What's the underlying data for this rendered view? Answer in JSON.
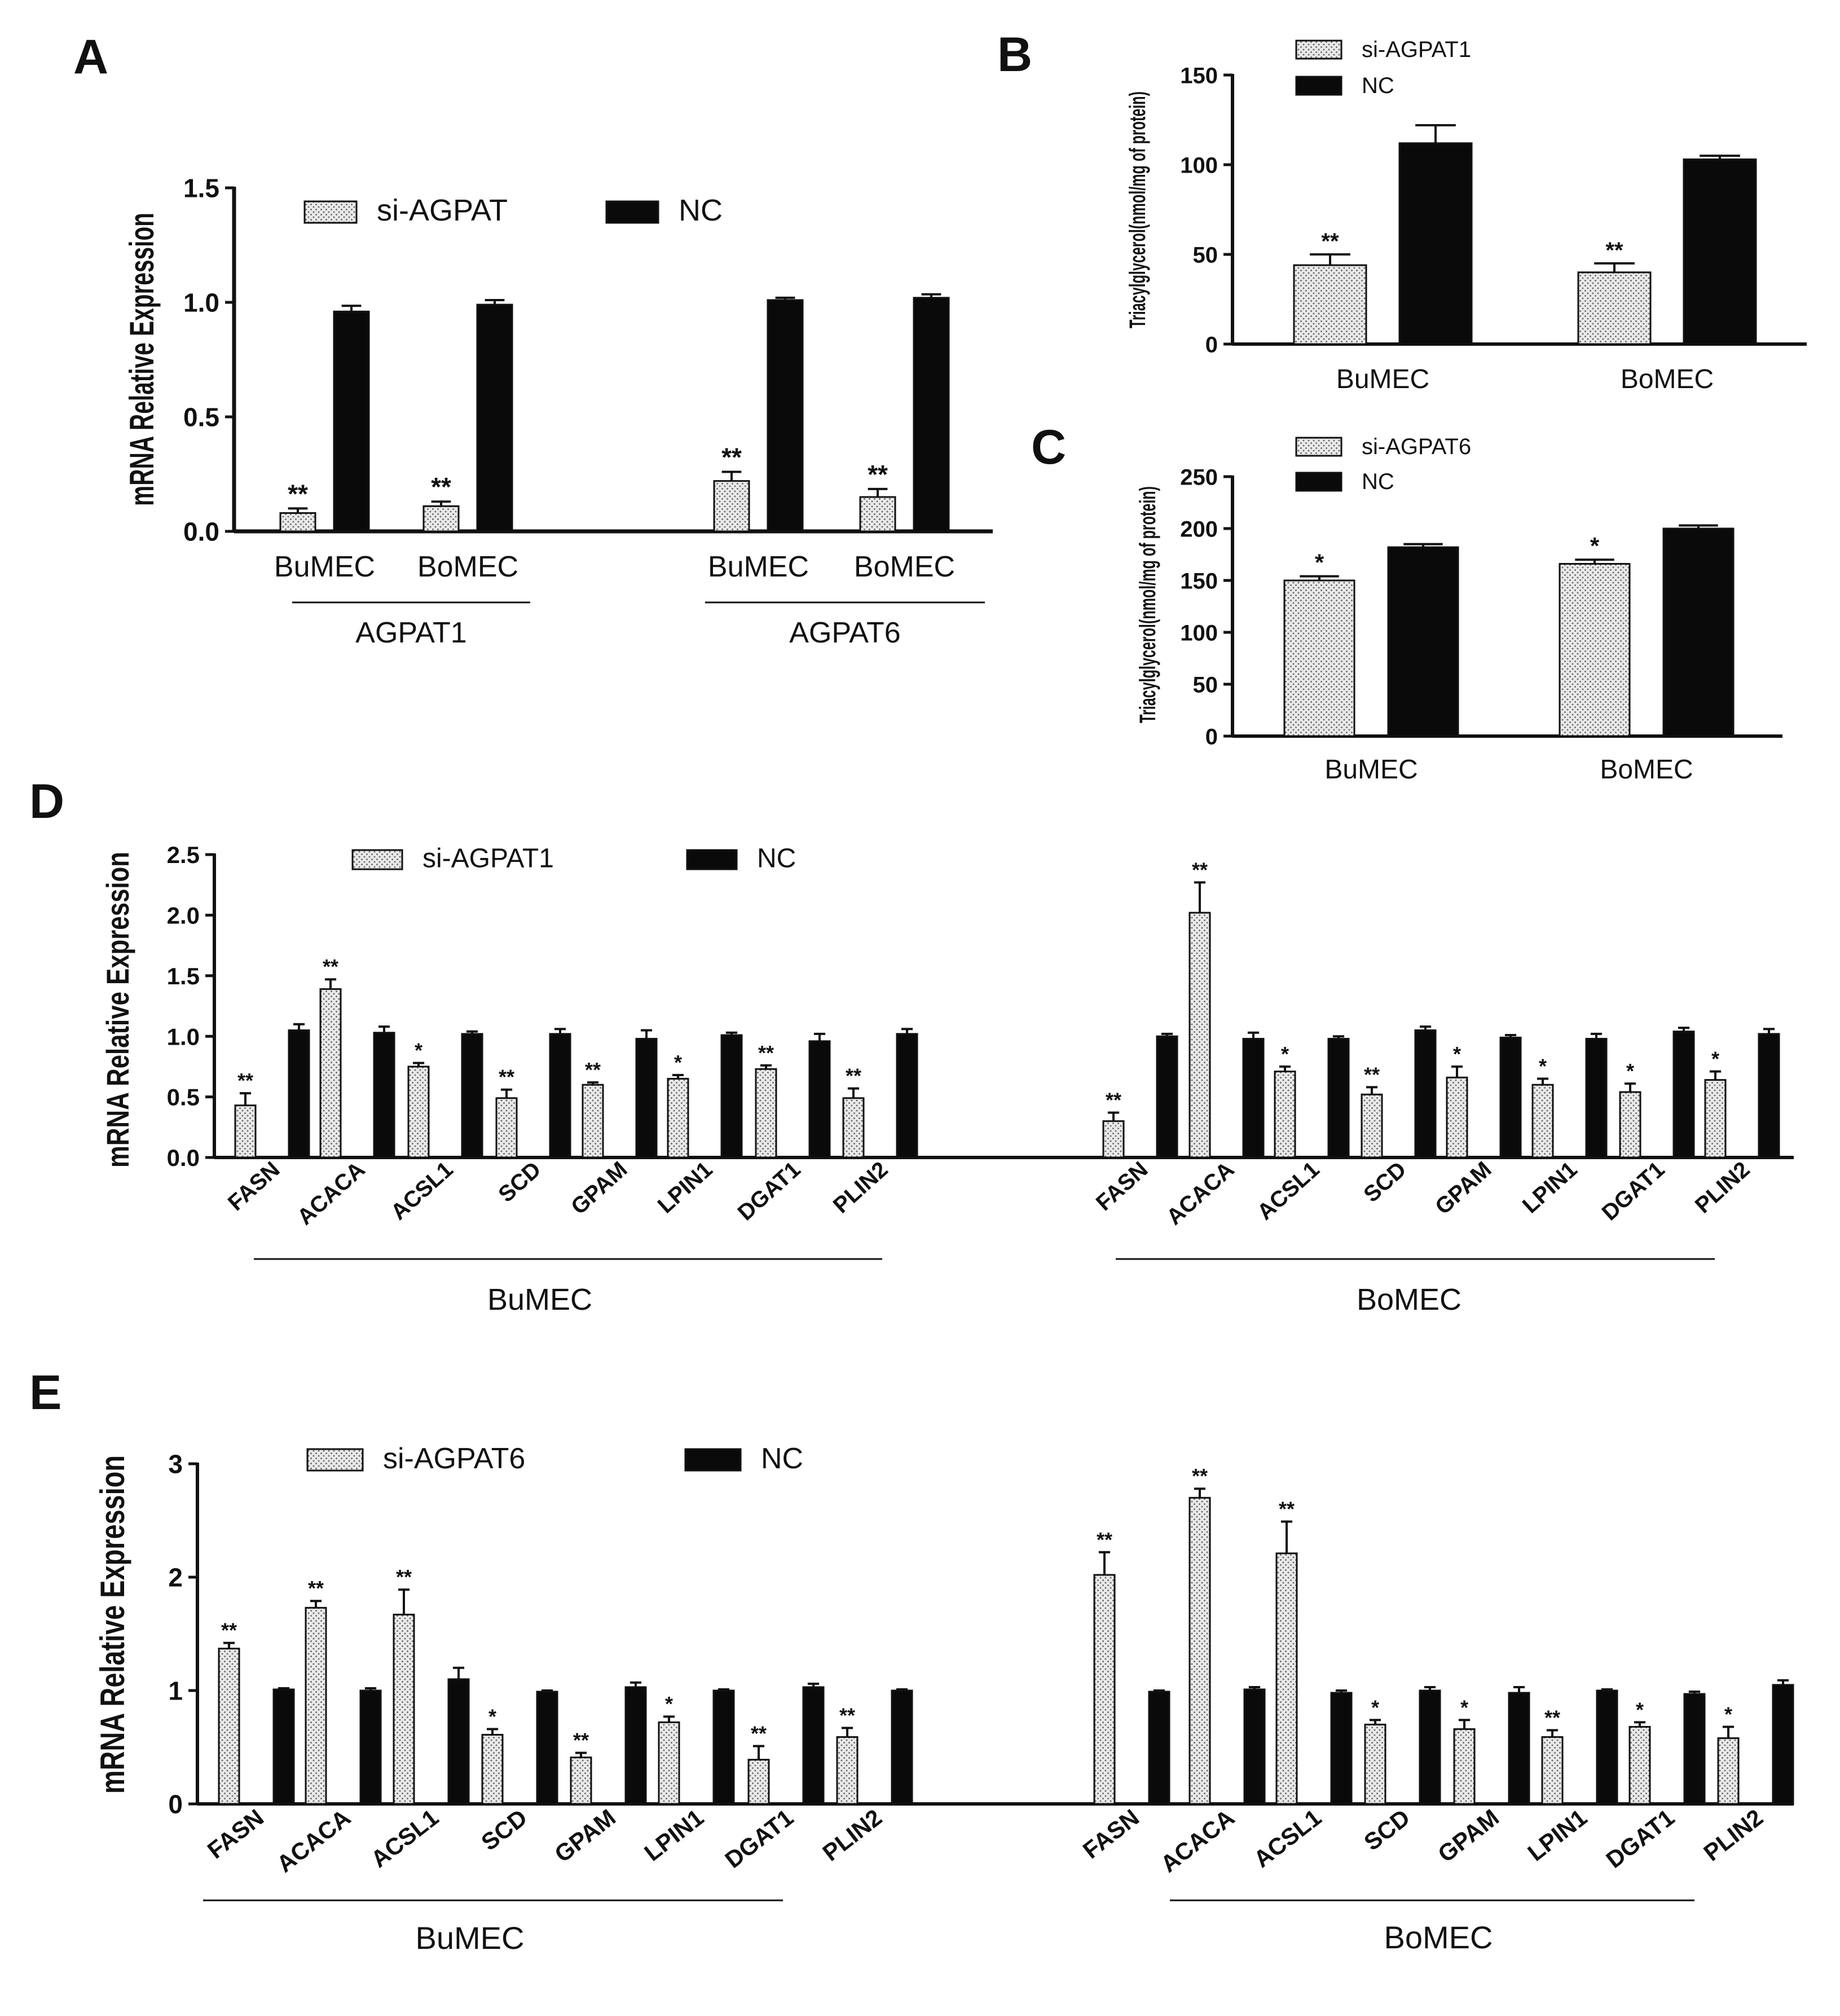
{
  "colors": {
    "nc_bar": "#0a0a0a",
    "si_bar_fill": "#e9e9e9",
    "si_bar_dot": "#6e6e6e",
    "axis": "#111111"
  },
  "chart_data": [
    {
      "panel": "A",
      "type": "bar",
      "ylabel": "mRNA Relative Expression",
      "ylim": [
        0,
        1.5
      ],
      "yticks": [
        0.0,
        0.5,
        1.0,
        1.5
      ],
      "ytick_labels": [
        "0.0",
        "0.5",
        "1.0",
        "1.5"
      ],
      "legend": [
        {
          "name": "si-AGPAT",
          "style": "dotted"
        },
        {
          "name": "NC",
          "style": "solid"
        }
      ],
      "categories": [
        "BuMEC",
        "BoMEC",
        "BuMEC",
        "BoMEC"
      ],
      "groups": [
        "AGPAT1",
        "AGPAT6"
      ],
      "series": [
        {
          "name": "si-AGPAT",
          "values": [
            0.08,
            0.11,
            0.22,
            0.15
          ],
          "errors": [
            0.02,
            0.02,
            0.04,
            0.035
          ],
          "sig": [
            "**",
            "**",
            "**",
            "**"
          ]
        },
        {
          "name": "NC",
          "values": [
            0.96,
            0.99,
            1.01,
            1.02
          ],
          "errors": [
            0.025,
            0.02,
            0.01,
            0.015
          ],
          "sig": [
            "",
            "",
            "",
            ""
          ]
        }
      ]
    },
    {
      "panel": "B",
      "type": "bar",
      "ylabel": "Triacylglycerol(nmol/mg of protein)",
      "ylim": [
        0,
        150
      ],
      "yticks": [
        0,
        50,
        100,
        150
      ],
      "ytick_labels": [
        "0",
        "50",
        "100",
        "150"
      ],
      "legend": [
        {
          "name": "si-AGPAT1",
          "style": "dotted"
        },
        {
          "name": "NC",
          "style": "solid"
        }
      ],
      "categories": [
        "BuMEC",
        "BoMEC"
      ],
      "series": [
        {
          "name": "si-AGPAT1",
          "values": [
            44,
            40
          ],
          "errors": [
            6,
            5
          ],
          "sig": [
            "**",
            "**"
          ]
        },
        {
          "name": "NC",
          "values": [
            112,
            103
          ],
          "errors": [
            10,
            2
          ],
          "sig": [
            "",
            ""
          ]
        }
      ]
    },
    {
      "panel": "C",
      "type": "bar",
      "ylabel": "Triacylglycerol(nmol/mg of protein)",
      "ylim": [
        0,
        250
      ],
      "yticks": [
        0,
        50,
        100,
        150,
        200,
        250
      ],
      "ytick_labels": [
        "0",
        "50",
        "100",
        "150",
        "200",
        "250"
      ],
      "legend": [
        {
          "name": "si-AGPAT6",
          "style": "dotted"
        },
        {
          "name": "NC",
          "style": "solid"
        }
      ],
      "categories": [
        "BuMEC",
        "BoMEC"
      ],
      "series": [
        {
          "name": "si-AGPAT6",
          "values": [
            150,
            166
          ],
          "errors": [
            4,
            4
          ],
          "sig": [
            "*",
            "*"
          ]
        },
        {
          "name": "NC",
          "values": [
            182,
            200
          ],
          "errors": [
            3,
            3
          ],
          "sig": [
            "",
            ""
          ]
        }
      ]
    },
    {
      "panel": "D",
      "type": "bar",
      "ylabel": "mRNA Relative Expression",
      "ylim": [
        0,
        2.5
      ],
      "yticks": [
        0.0,
        0.5,
        1.0,
        1.5,
        2.0,
        2.5
      ],
      "ytick_labels": [
        "0.0",
        "0.5",
        "1.0",
        "1.5",
        "2.0",
        "2.5"
      ],
      "legend": [
        {
          "name": "si-AGPAT1",
          "style": "dotted"
        },
        {
          "name": "NC",
          "style": "solid"
        }
      ],
      "categories": [
        "FASN",
        "ACACA",
        "ACSL1",
        "SCD",
        "GPAM",
        "LPIN1",
        "DGAT1",
        "PLIN2",
        "FASN",
        "ACACA",
        "ACSL1",
        "SCD",
        "GPAM",
        "LPIN1",
        "DGAT1",
        "PLIN2"
      ],
      "groups": [
        "BuMEC",
        "BoMEC"
      ],
      "series": [
        {
          "name": "si-AGPAT1",
          "values": [
            0.43,
            1.39,
            0.75,
            0.49,
            0.6,
            0.65,
            0.73,
            0.49,
            0.3,
            2.02,
            0.71,
            0.52,
            0.66,
            0.6,
            0.54,
            0.64
          ],
          "errors": [
            0.1,
            0.08,
            0.03,
            0.07,
            0.02,
            0.03,
            0.03,
            0.08,
            0.07,
            0.25,
            0.04,
            0.06,
            0.09,
            0.05,
            0.07,
            0.07
          ],
          "sig": [
            "**",
            "**",
            "*",
            "**",
            "**",
            "*",
            "**",
            "**",
            "**",
            "**",
            "*",
            "**",
            "*",
            "*",
            "*",
            "*"
          ]
        },
        {
          "name": "NC",
          "values": [
            1.05,
            1.03,
            1.02,
            1.02,
            0.98,
            1.01,
            0.96,
            1.02,
            1.0,
            0.98,
            0.98,
            1.05,
            0.99,
            0.98,
            1.04,
            1.02
          ],
          "errors": [
            0.05,
            0.05,
            0.02,
            0.04,
            0.07,
            0.02,
            0.06,
            0.04,
            0.02,
            0.05,
            0.02,
            0.03,
            0.02,
            0.04,
            0.03,
            0.04
          ],
          "sig": [
            "",
            "",
            "",
            "",
            "",
            "",
            "",
            "",
            "",
            "",
            "",
            "",
            "",
            "",
            "",
            ""
          ]
        }
      ]
    },
    {
      "panel": "E",
      "type": "bar",
      "ylabel": "mRNA Relative Expression",
      "ylim": [
        0,
        3
      ],
      "yticks": [
        0,
        1,
        2,
        3
      ],
      "ytick_labels": [
        "0",
        "1",
        "2",
        "3"
      ],
      "legend": [
        {
          "name": "si-AGPAT6",
          "style": "dotted"
        },
        {
          "name": "NC",
          "style": "solid"
        }
      ],
      "categories": [
        "FASN",
        "ACACA",
        "ACSL1",
        "SCD",
        "GPAM",
        "LPIN1",
        "DGAT1",
        "PLIN2",
        "FASN",
        "ACACA",
        "ACSL1",
        "SCD",
        "GPAM",
        "LPIN1",
        "DGAT1",
        "PLIN2"
      ],
      "groups": [
        "BuMEC",
        "BoMEC"
      ],
      "series": [
        {
          "name": "si-AGPAT6",
          "values": [
            1.37,
            1.73,
            1.67,
            0.61,
            0.41,
            0.72,
            0.39,
            0.59,
            2.02,
            2.7,
            2.21,
            0.7,
            0.66,
            0.59,
            0.68,
            0.58
          ],
          "errors": [
            0.05,
            0.06,
            0.22,
            0.05,
            0.04,
            0.05,
            0.12,
            0.08,
            0.2,
            0.08,
            0.28,
            0.04,
            0.08,
            0.06,
            0.04,
            0.1
          ],
          "sig": [
            "**",
            "**",
            "**",
            "*",
            "**",
            "*",
            "**",
            "**",
            "**",
            "**",
            "**",
            "*",
            "*",
            "**",
            "*",
            "*"
          ]
        },
        {
          "name": "NC",
          "values": [
            1.01,
            1.0,
            1.1,
            0.99,
            1.03,
            1.0,
            1.03,
            1.0,
            0.99,
            1.01,
            0.98,
            1.0,
            0.98,
            1.0,
            0.97,
            1.05
          ],
          "errors": [
            0.01,
            0.02,
            0.1,
            0.01,
            0.04,
            0.01,
            0.03,
            0.01,
            0.01,
            0.02,
            0.02,
            0.03,
            0.05,
            0.01,
            0.02,
            0.04
          ],
          "sig": [
            "",
            "",
            "",
            "",
            "",
            "",
            "",
            "",
            "",
            "",
            "",
            "",
            "",
            "",
            "",
            ""
          ]
        }
      ]
    }
  ]
}
